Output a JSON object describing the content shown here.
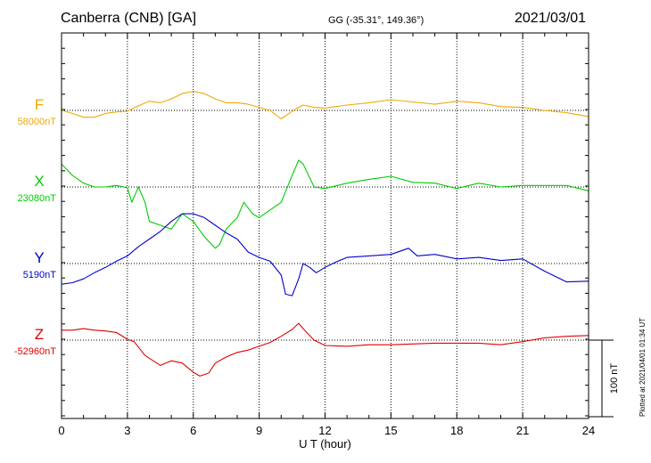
{
  "header": {
    "station": "Canberra (CNB)  [GA]",
    "coords": "GG (-35.31°, 149.36°)",
    "date": "2021/03/01"
  },
  "footer": {
    "plotted": "Plotted at 2021/04/01 01:34 UT"
  },
  "scale_bar": {
    "label": "100 nT",
    "value_nT": 100
  },
  "colors": {
    "F": "#f0a800",
    "X": "#00cc00",
    "Y": "#0000cc",
    "Z": "#e00000"
  },
  "chart_data": {
    "type": "line",
    "xlabel": "U T (hour)",
    "xlim": [
      0,
      24
    ],
    "xticks": [
      "0",
      "3",
      "6",
      "9",
      "12",
      "15",
      "18",
      "21",
      "24"
    ],
    "units": "nT",
    "scale_nT_per_division": 100,
    "series": [
      {
        "name": "F",
        "baseline_label": "58000nT",
        "baseline": 58000,
        "x": [
          0,
          0.5,
          1,
          1.5,
          2,
          2.5,
          3,
          3.5,
          4,
          4.5,
          5,
          5.5,
          6,
          6.5,
          7,
          7.5,
          8,
          8.5,
          9,
          9.5,
          10,
          10.5,
          11,
          11.5,
          12,
          13,
          14,
          15,
          16,
          17,
          18,
          19,
          20,
          21,
          22,
          23,
          24
        ],
        "y": [
          58000,
          57996,
          57991,
          57991,
          57996,
          57998,
          57999,
          58006,
          58012,
          58010,
          58015,
          58022,
          58025,
          58022,
          58015,
          58010,
          58010,
          58008,
          58004,
          58000,
          57989,
          57999,
          58007,
          58004,
          58003,
          58007,
          58010,
          58014,
          58011,
          58008,
          58012,
          58010,
          58005,
          58004,
          58000,
          57997,
          57992
        ]
      },
      {
        "name": "X",
        "baseline_label": "23080nT",
        "baseline": 23080,
        "x": [
          0,
          0.5,
          1,
          1.5,
          2,
          2.5,
          3,
          3.2,
          3.5,
          3.8,
          4,
          4.5,
          5,
          5.5,
          6,
          6.5,
          7,
          7.2,
          7.5,
          8,
          8.3,
          8.7,
          9,
          9.5,
          10,
          10.5,
          10.8,
          11,
          11.5,
          12,
          13,
          14,
          15,
          16,
          17,
          18,
          19,
          20,
          21,
          22,
          23,
          24
        ],
        "y": [
          23110,
          23095,
          23085,
          23080,
          23080,
          23082,
          23079,
          23060,
          23080,
          23060,
          23035,
          23030,
          23025,
          23045,
          23035,
          23015,
          23000,
          23005,
          23025,
          23040,
          23060,
          23045,
          23040,
          23050,
          23060,
          23095,
          23115,
          23110,
          23080,
          23078,
          23085,
          23090,
          23094,
          23086,
          23085,
          23078,
          23085,
          23080,
          23082,
          23082,
          23082,
          23075
        ]
      },
      {
        "name": "Y",
        "baseline_label": "5190nT",
        "baseline": 5190,
        "x": [
          0,
          0.5,
          1,
          1.5,
          2,
          2.5,
          3,
          3.5,
          4,
          4.5,
          5,
          5.5,
          6,
          6.5,
          7,
          7.5,
          8,
          8.5,
          9,
          9.5,
          10,
          10.2,
          10.5,
          10.8,
          11,
          11.3,
          11.6,
          12,
          12.5,
          13,
          14,
          15,
          15.8,
          16.2,
          17,
          18,
          19,
          20,
          21,
          22,
          23,
          24
        ],
        "y": [
          5163,
          5165,
          5170,
          5178,
          5185,
          5193,
          5200,
          5212,
          5222,
          5232,
          5245,
          5255,
          5255,
          5250,
          5240,
          5230,
          5222,
          5205,
          5198,
          5193,
          5175,
          5150,
          5148,
          5170,
          5190,
          5185,
          5178,
          5185,
          5192,
          5198,
          5200,
          5202,
          5210,
          5200,
          5202,
          5196,
          5198,
          5194,
          5196,
          5180,
          5166,
          5167
        ]
      },
      {
        "name": "Z",
        "baseline_label": "-52960nT",
        "baseline": -52960,
        "x": [
          0,
          0.5,
          1,
          1.5,
          2,
          2.5,
          3,
          3.3,
          3.8,
          4.5,
          5,
          5.5,
          6,
          6.3,
          6.7,
          7,
          7.5,
          8,
          8.5,
          9,
          9.5,
          10,
          10.5,
          10.8,
          11,
          11.5,
          12,
          13,
          14,
          15,
          16,
          17,
          18,
          19,
          20,
          21,
          22,
          23,
          24
        ],
        "y": [
          -52947,
          -52947,
          -52945,
          -52947,
          -52948,
          -52950,
          -52959,
          -52962,
          -52980,
          -52993,
          -52987,
          -52990,
          -53002,
          -53007,
          -53003,
          -52990,
          -52982,
          -52976,
          -52973,
          -52968,
          -52963,
          -52955,
          -52946,
          -52938,
          -52945,
          -52960,
          -52967,
          -52968,
          -52966,
          -52966,
          -52965,
          -52964,
          -52964,
          -52964,
          -52966,
          -52962,
          -52957,
          -52955,
          -52954
        ]
      }
    ]
  }
}
